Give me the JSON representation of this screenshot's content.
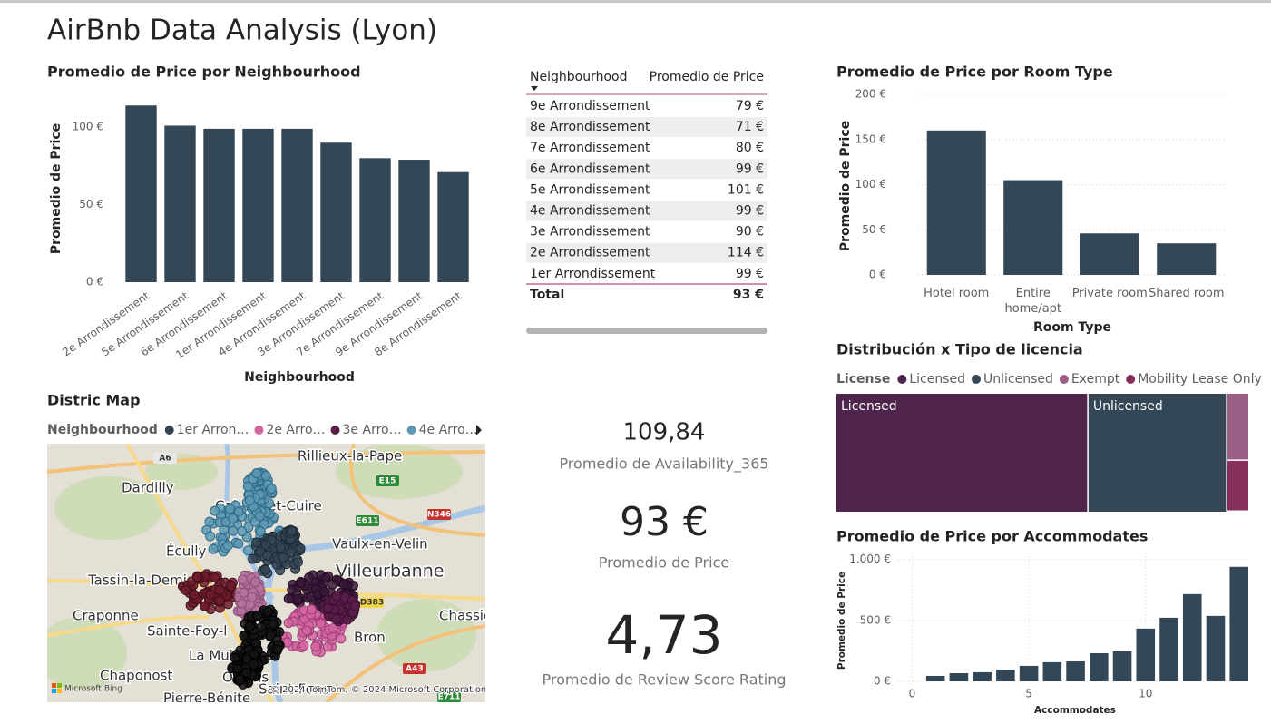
{
  "title": "AirBnb Data Analysis (Lyon)",
  "chart_data": [
    {
      "type": "bar",
      "title": "Promedio de Price por Neighbourhood",
      "x_label": "Neighbourhood",
      "y_label": "Promedio de Price",
      "categories": [
        "2e Arrondissement",
        "5e Arrondissement",
        "6e Arrondissement",
        "1er Arrondissement",
        "4e Arrondissement",
        "3e Arrondissement",
        "7e Arrondissement",
        "9e Arrondissement",
        "8e Arrondissement"
      ],
      "values": [
        114,
        101,
        99,
        99,
        99,
        90,
        80,
        79,
        71
      ],
      "color": "#344756",
      "ylim": [
        0,
        120
      ],
      "yticks": [
        {
          "value": 0,
          "label": "0 €"
        },
        {
          "value": 50,
          "label": "50 €"
        },
        {
          "value": 100,
          "label": "100 €"
        }
      ],
      "grid": false
    },
    {
      "type": "bar",
      "title": "Promedio de Price por Room Type",
      "x_label": "Room Type",
      "y_label": "Promedio de Price",
      "categories": [
        "Hotel room",
        "Entire home/apt",
        "Private room",
        "Shared room"
      ],
      "values": [
        160,
        105,
        46,
        35
      ],
      "color": "#344756",
      "ylim": [
        0,
        200
      ],
      "yticks": [
        {
          "value": 0,
          "label": "0 €"
        },
        {
          "value": 50,
          "label": "50 €"
        },
        {
          "value": 100,
          "label": "100 €"
        },
        {
          "value": 150,
          "label": "150 €"
        },
        {
          "value": 200,
          "label": "200 €"
        }
      ],
      "grid": true
    },
    {
      "type": "treemap",
      "title": "Distribución x Tipo de licencia",
      "legend_title": "License",
      "categories": [
        "Licensed",
        "Unlicensed",
        "Exempt",
        "Mobility Lease Only"
      ],
      "values": [
        61.2,
        33.7,
        2.9,
        2.2
      ],
      "colors": [
        "#4f244d",
        "#344756",
        "#9b5f86",
        "#862f5c"
      ]
    },
    {
      "type": "bar",
      "title": "Promedio de Price por Accommodates",
      "x_label": "Accommodates",
      "y_label": "Promedio de Price",
      "x": [
        1,
        2,
        3,
        4,
        5,
        6,
        7,
        8,
        9,
        10,
        11,
        12,
        13,
        14
      ],
      "values": [
        45,
        67,
        75,
        97,
        127,
        157,
        164,
        231,
        246,
        433,
        522,
        716,
        537,
        940
      ],
      "color": "#344756",
      "xlim": [
        -0.6,
        14.4
      ],
      "xticks": [
        0,
        5,
        10
      ],
      "ylim": [
        0,
        1050
      ],
      "yticks": [
        {
          "value": 0,
          "label": "0 €"
        },
        {
          "value": 500,
          "label": "500 €"
        },
        {
          "value": 1000,
          "label": "1.000 €"
        }
      ],
      "grid": true
    }
  ],
  "table": {
    "columns": [
      "Neighbourhood",
      "Promedio de Price"
    ],
    "rows": [
      [
        "9e Arrondissement",
        "79 €"
      ],
      [
        "8e Arrondissement",
        "71 €"
      ],
      [
        "7e Arrondissement",
        "80 €"
      ],
      [
        "6e Arrondissement",
        "99 €"
      ],
      [
        "5e Arrondissement",
        "101 €"
      ],
      [
        "4e Arrondissement",
        "99 €"
      ],
      [
        "3e Arrondissement",
        "90 €"
      ],
      [
        "2e Arrondissement",
        "114 €"
      ],
      [
        "1er Arrondissement",
        "99 €"
      ]
    ],
    "total": [
      "Total",
      "93 €"
    ]
  },
  "cards": [
    {
      "value": "109,84",
      "label": "Promedio de Availability_365"
    },
    {
      "value": "93 €",
      "label": "Promedio de Price"
    },
    {
      "value": "4,73",
      "label": "Promedio de Review Score Rating"
    }
  ],
  "map": {
    "title": "Distric Map",
    "legend_title": "Neighbourhood",
    "legend": [
      {
        "name": "1er Arron…",
        "color": "#344756"
      },
      {
        "name": "2e Arro…",
        "color": "#d3649f"
      },
      {
        "name": "3e Arro…",
        "color": "#5b1f4a"
      },
      {
        "name": "4e Arro…",
        "color": "#5d99b4"
      }
    ],
    "places": [
      "Rillieux-la-Pape",
      "Dardilly",
      "Caluire-et-Cuire",
      "Écully",
      "Vaulx-en-Velin",
      "Tassin-la-Demi-",
      "Villeurbanne",
      "Craponne",
      "Sainte-Foy-l",
      "Chassie",
      "Bron",
      "La Mulatière",
      "Chaponost",
      "Oullins",
      "Pierre-Bénite",
      "Saint-Fons"
    ],
    "roads": [
      "A6",
      "E15",
      "E611",
      "N346",
      "D383",
      "A43",
      "E711"
    ],
    "provider": "Microsoft Bing",
    "attribution": "© 2024 TomTom, © 2024 Microsoft Corporation"
  }
}
